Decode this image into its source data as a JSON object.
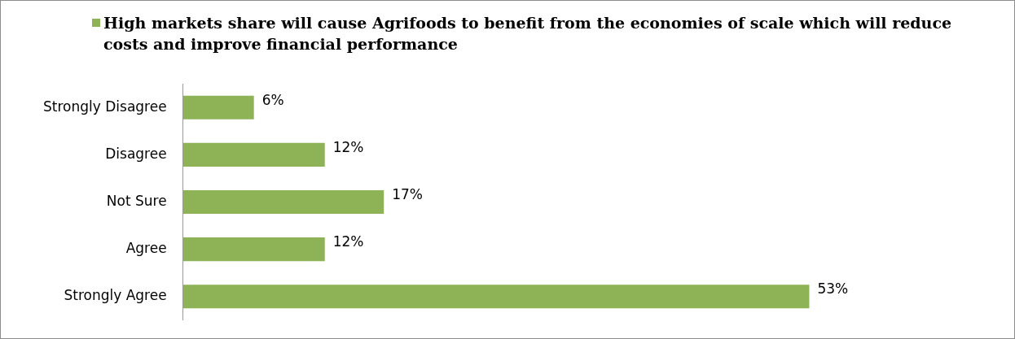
{
  "chart_data": {
    "type": "bar",
    "orientation": "horizontal",
    "legend": "top left",
    "categories": [
      "Strongly Disagree",
      "Disagree",
      "Not Sure",
      "Agree",
      "Strongly Agree"
    ],
    "series": [
      {
        "name": "High markets share will cause Agrifoods to benefit from the economies of scale which will reduce costs and improve financial performance",
        "color": "#8db356",
        "values": [
          6,
          12,
          17,
          12,
          53
        ],
        "value_labels": [
          "6%",
          "12%",
          "17%",
          "12%",
          "53%"
        ]
      }
    ]
  }
}
